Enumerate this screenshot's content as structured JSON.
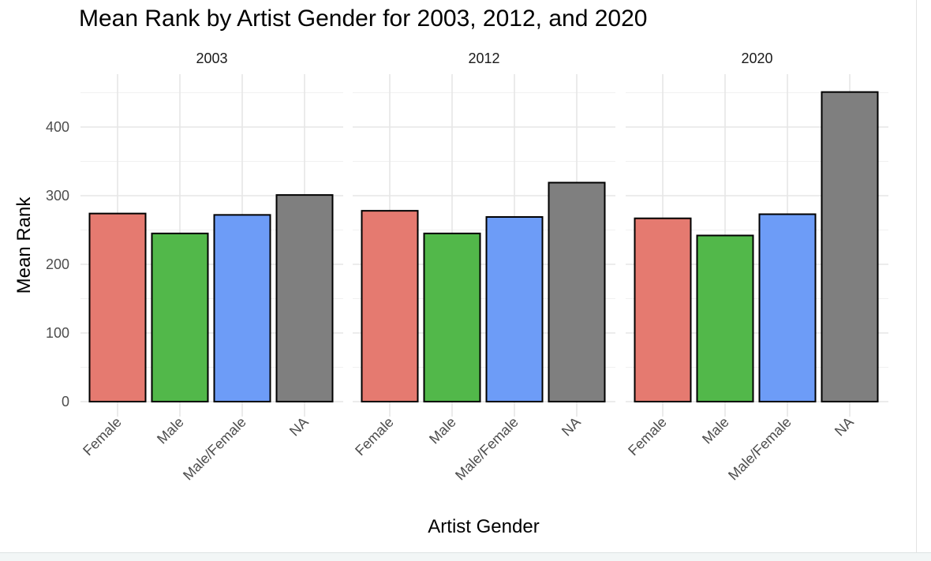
{
  "chart_data": {
    "type": "bar",
    "title": "Mean Rank by Artist Gender for 2003, 2012, and 2020",
    "xlabel": "Artist Gender",
    "ylabel": "Mean Rank",
    "categories": [
      "Female",
      "Male",
      "Male/Female",
      "NA"
    ],
    "category_colors": [
      "#e57a70",
      "#52b84a",
      "#6d9cf7",
      "#7f7f7f"
    ],
    "bar_outline": "#000000",
    "ylim": [
      0,
      450
    ],
    "yticks": [
      0,
      100,
      200,
      300,
      400
    ],
    "grid": true,
    "legend": "none",
    "facets": [
      {
        "label": "2003",
        "values": [
          274,
          245,
          272,
          301
        ]
      },
      {
        "label": "2012",
        "values": [
          278,
          245,
          269,
          319
        ]
      },
      {
        "label": "2020",
        "values": [
          267,
          242,
          273,
          451
        ]
      }
    ]
  }
}
